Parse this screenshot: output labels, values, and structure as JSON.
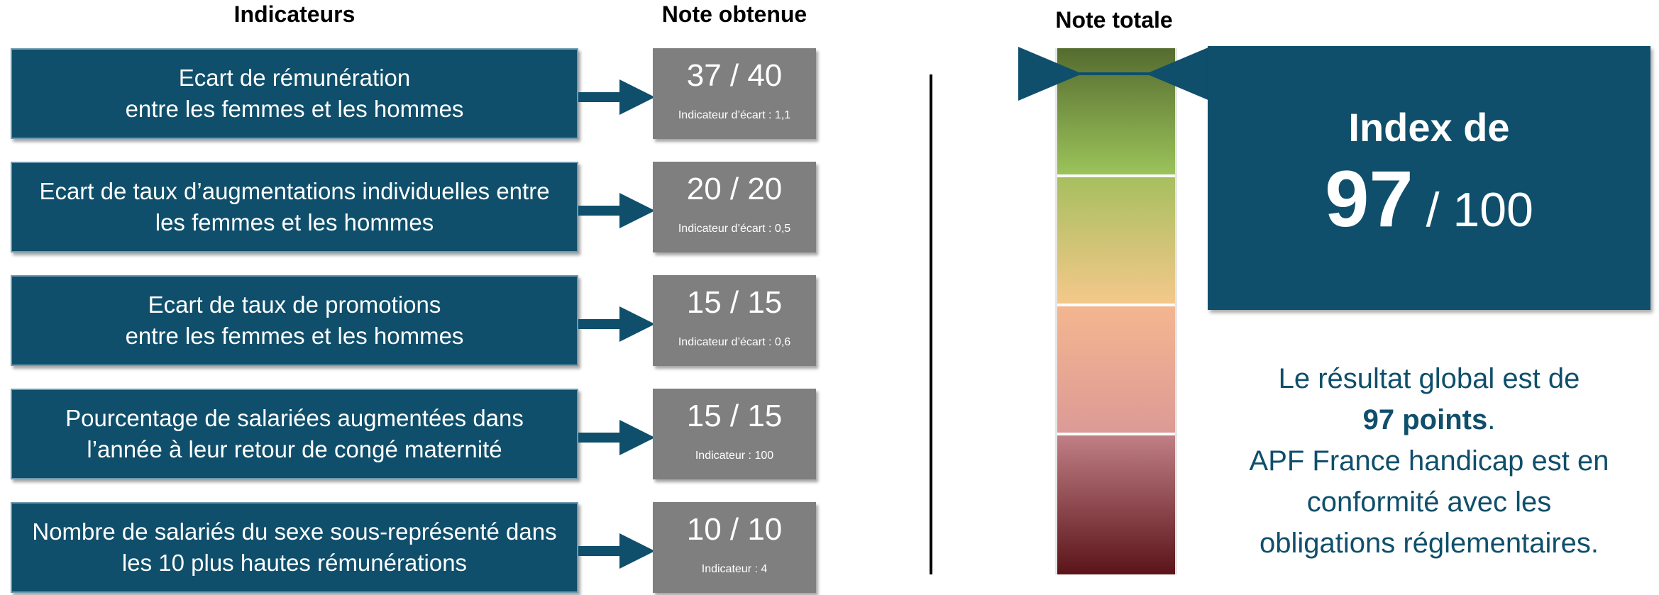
{
  "headers": {
    "indicators": "Indicateurs",
    "score": "Note obtenue",
    "total": "Note totale"
  },
  "indicators": [
    {
      "line1": "Ecart de rémunération",
      "line2": "entre les femmes et les hommes",
      "score": "37 / 40",
      "detail": "Indicateur d’écart : 1,1"
    },
    {
      "line1": "Ecart de taux d’augmentations individuelles entre",
      "line2": "les femmes et les hommes",
      "score": "20 / 20",
      "detail": "Indicateur d’écart : 0,5"
    },
    {
      "line1": "Ecart de taux de promotions",
      "line2": "entre les femmes et les hommes",
      "score": "15 / 15",
      "detail": "Indicateur d’écart : 0,6"
    },
    {
      "line1": "Pourcentage de salariées augmentées dans",
      "line2": "l’année à leur retour de congé maternité",
      "score": "15 / 15",
      "detail": "Indicateur  : 100"
    },
    {
      "line1": "Nombre de salariés du sexe sous-représenté dans",
      "line2": "les 10 plus hautes rémunérations",
      "score": "10 / 10",
      "detail": "Indicateur : 4"
    }
  ],
  "result": {
    "title": "Index de",
    "score": "97",
    "max": "/ 100",
    "score_value": 97,
    "max_value": 100
  },
  "conclusion": {
    "line1": "Le résultat global est de",
    "line2_bold": "97 points",
    "line2_end": ".",
    "line3": "APF France handicap est en",
    "line4": "conformité avec les",
    "line5": "obligations réglementaires."
  },
  "colors": {
    "box_blue": "#0f4f6b",
    "score_grey": "#7f7f7f",
    "gauge_segments": [
      [
        "#556b2f",
        "#9bc35a"
      ],
      [
        "#a7bf5f",
        "#f4c88a"
      ],
      [
        "#f4b690",
        "#dc9a96"
      ],
      [
        "#c07f85",
        "#5a1419"
      ]
    ]
  }
}
